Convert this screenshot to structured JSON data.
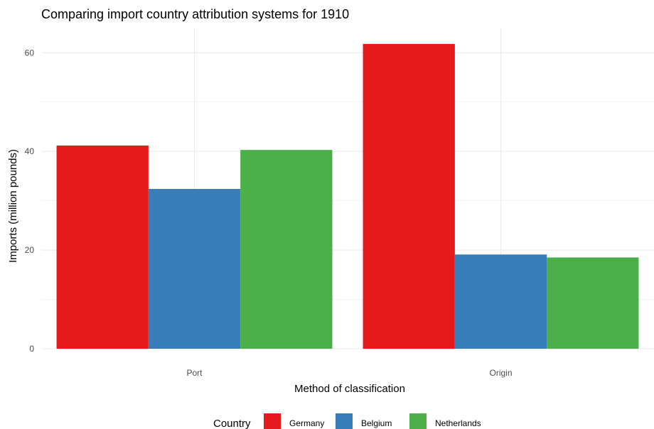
{
  "chart_data": {
    "type": "bar",
    "title": "Comparing import country attribution systems for 1910",
    "xlabel": "Method of classification",
    "ylabel": "Imports (million pounds)",
    "categories": [
      "Port",
      "Origin"
    ],
    "series": [
      {
        "name": "Germany",
        "color": "#E41A1C",
        "values": [
          41.2,
          61.8
        ]
      },
      {
        "name": "Belgium",
        "color": "#377EB8",
        "values": [
          32.4,
          19.1
        ]
      },
      {
        "name": "Netherlands",
        "color": "#4DAF4A",
        "values": [
          40.3,
          18.5
        ]
      }
    ],
    "ylim": [
      0,
      65
    ],
    "yticks": [
      0,
      20,
      40,
      60
    ],
    "grid": true,
    "legend": {
      "title": "Country",
      "position": "bottom"
    }
  }
}
